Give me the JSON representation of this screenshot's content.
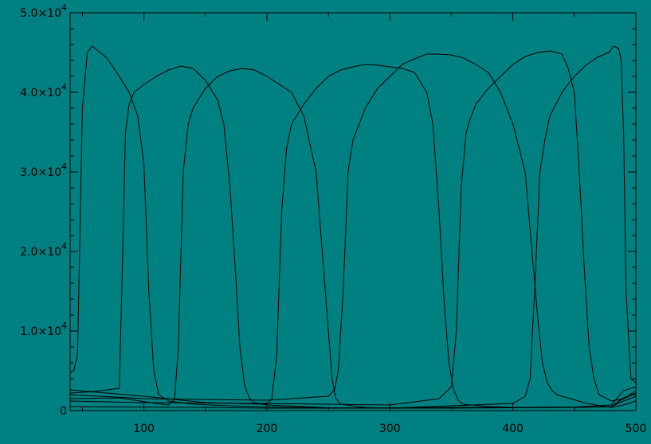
{
  "chart_data": {
    "type": "line",
    "title": "",
    "xlabel": "",
    "ylabel": "",
    "xlim": [
      40,
      500
    ],
    "ylim": [
      0,
      50000
    ],
    "grid": false,
    "legend": "none",
    "x_ticks": [
      {
        "value": 100,
        "label": "100"
      },
      {
        "value": 200,
        "label": "200"
      },
      {
        "value": 300,
        "label": "300"
      },
      {
        "value": 400,
        "label": "400"
      },
      {
        "value": 500,
        "label": "500"
      }
    ],
    "y_ticks": [
      {
        "value": 0,
        "mantissa": "0",
        "exp": ""
      },
      {
        "value": 10000,
        "mantissa": "1.0×10",
        "exp": "4"
      },
      {
        "value": 20000,
        "mantissa": "2.0×10",
        "exp": "4"
      },
      {
        "value": 30000,
        "mantissa": "3.0×10",
        "exp": "4"
      },
      {
        "value": 40000,
        "mantissa": "4.0×10",
        "exp": "4"
      },
      {
        "value": 50000,
        "mantissa": "5.0×10",
        "exp": "4"
      }
    ],
    "colors": {
      "background": "#008080",
      "line": "#000000"
    },
    "series": [
      {
        "x": [
          40,
          43,
          46,
          50,
          54,
          58,
          62,
          70,
          80,
          88,
          95,
          100,
          104,
          108,
          112,
          120,
          140,
          170,
          200,
          250,
          300,
          350,
          400,
          450,
          480,
          490,
          500
        ],
        "y": [
          4800,
          5000,
          7000,
          38000,
          45000,
          45800,
          45300,
          44300,
          42000,
          40000,
          37000,
          31000,
          15000,
          5000,
          2000,
          1200,
          800,
          600,
          450,
          350,
          350,
          400,
          400,
          450,
          700,
          2500,
          3000
        ]
      },
      {
        "x": [
          40,
          60,
          80,
          82,
          85,
          88,
          92,
          100,
          110,
          120,
          130,
          140,
          150,
          160,
          165,
          170,
          175,
          178,
          182,
          186,
          190,
          200,
          250,
          300,
          350,
          400,
          450,
          480,
          490,
          500
        ],
        "y": [
          2200,
          2400,
          2800,
          15000,
          35000,
          38500,
          40000,
          41000,
          42000,
          42800,
          43300,
          43000,
          41500,
          39000,
          36000,
          28000,
          16000,
          8000,
          3000,
          1500,
          1000,
          700,
          350,
          300,
          350,
          400,
          400,
          500,
          1500,
          2200
        ]
      },
      {
        "x": [
          40,
          80,
          110,
          120,
          125,
          128,
          132,
          136,
          140,
          150,
          160,
          170,
          180,
          190,
          200,
          210,
          220,
          230,
          240,
          245,
          250,
          253,
          256,
          260,
          280,
          300,
          350,
          400,
          450,
          480,
          490,
          500
        ],
        "y": [
          1500,
          1600,
          900,
          700,
          1500,
          8000,
          30000,
          36000,
          38000,
          40500,
          42000,
          42700,
          43000,
          42800,
          42000,
          41000,
          40000,
          37000,
          30000,
          20000,
          10000,
          4000,
          1500,
          800,
          400,
          300,
          300,
          350,
          400,
          500,
          1200,
          1800
        ]
      },
      {
        "x": [
          40,
          100,
          150,
          200,
          204,
          208,
          212,
          216,
          220,
          230,
          240,
          250,
          260,
          270,
          280,
          290,
          300,
          310,
          320,
          330,
          335,
          340,
          344,
          348,
          352,
          356,
          360,
          380,
          400,
          450,
          480,
          490,
          500
        ],
        "y": [
          2600,
          1800,
          1000,
          800,
          1500,
          7000,
          25000,
          33000,
          36000,
          38500,
          40500,
          42000,
          42800,
          43200,
          43500,
          43400,
          43200,
          43000,
          42500,
          40000,
          36000,
          25000,
          14000,
          6000,
          2500,
          1200,
          800,
          500,
          400,
          400,
          500,
          1600,
          2200
        ]
      },
      {
        "x": [
          40,
          100,
          200,
          250,
          255,
          258,
          262,
          266,
          270,
          280,
          290,
          300,
          310,
          320,
          330,
          340,
          350,
          360,
          370,
          380,
          390,
          400,
          410,
          420,
          424,
          428,
          432,
          436,
          440,
          460,
          480,
          490,
          500
        ],
        "y": [
          2000,
          1500,
          1300,
          1800,
          2600,
          5000,
          15000,
          30000,
          34000,
          38000,
          40500,
          42000,
          43500,
          44200,
          44800,
          44800,
          44700,
          44300,
          43500,
          42500,
          40000,
          36000,
          30000,
          12000,
          6000,
          3500,
          2500,
          2000,
          1800,
          900,
          400,
          700,
          1200
        ]
      },
      {
        "x": [
          40,
          100,
          200,
          300,
          340,
          350,
          354,
          358,
          362,
          366,
          370,
          380,
          390,
          400,
          410,
          420,
          430,
          440,
          445,
          450,
          454,
          458,
          462,
          466,
          470,
          480,
          490,
          500
        ],
        "y": [
          1200,
          1000,
          900,
          700,
          1500,
          3000,
          10000,
          28000,
          35000,
          37000,
          38500,
          40500,
          42000,
          43500,
          44500,
          45000,
          45200,
          44800,
          43000,
          40000,
          30000,
          18000,
          8000,
          4000,
          2000,
          1200,
          1500,
          2500
        ]
      },
      {
        "x": [
          40,
          150,
          200,
          300,
          400,
          410,
          414,
          418,
          422,
          426,
          430,
          440,
          450,
          460,
          470,
          478,
          482,
          486,
          488,
          490,
          492,
          496,
          500
        ],
        "y": [
          500,
          400,
          300,
          300,
          900,
          1800,
          4000,
          16000,
          30000,
          34000,
          37000,
          40000,
          42000,
          43500,
          44500,
          45000,
          45800,
          45500,
          44000,
          35000,
          15000,
          4000,
          3500
        ]
      }
    ]
  }
}
